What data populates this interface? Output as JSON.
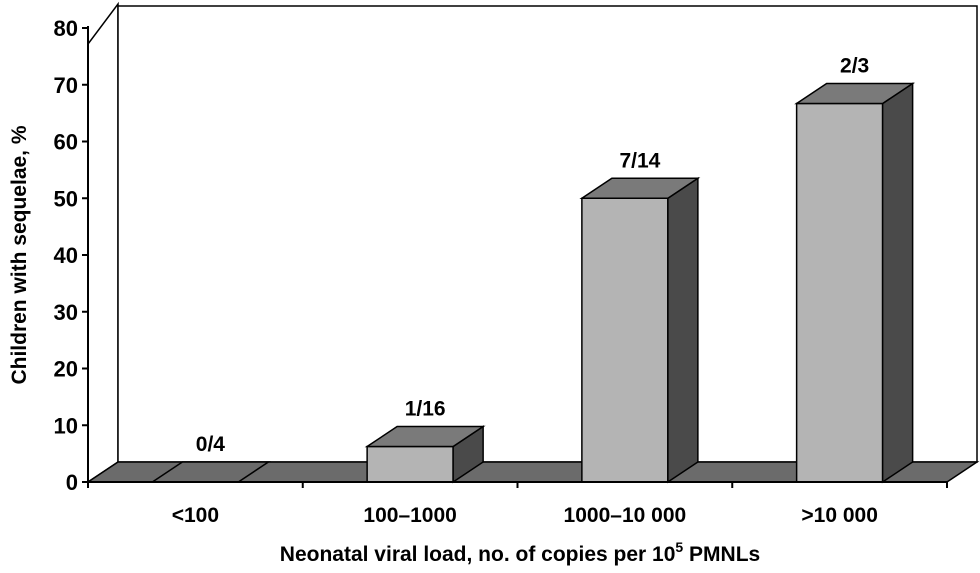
{
  "chart_data": {
    "type": "bar",
    "title": "",
    "xlabel": "Neonatal viral load, no. of copies per 10",
    "xlabel_superscript": "5",
    "xlabel_suffix": " PMNLs",
    "ylabel": "Children with sequelae, %",
    "ylim": [
      0,
      80
    ],
    "yticks": [
      "0",
      "10",
      "20",
      "30",
      "40",
      "50",
      "60",
      "70",
      "80"
    ],
    "categories": [
      "<100",
      "100–1000",
      "1000–10 000",
      ">10 000"
    ],
    "values": [
      0,
      6.25,
      50,
      66.7
    ],
    "data_labels": [
      "0/4",
      "1/16",
      "7/14",
      "2/3"
    ],
    "grid": false,
    "style": "3d",
    "colors": {
      "bar_front": "#b4b4b4",
      "bar_top": "#7a7a7a",
      "bar_side": "#4a4a4a",
      "floor": "#6b6b6b",
      "wall": "#ffffff"
    }
  }
}
